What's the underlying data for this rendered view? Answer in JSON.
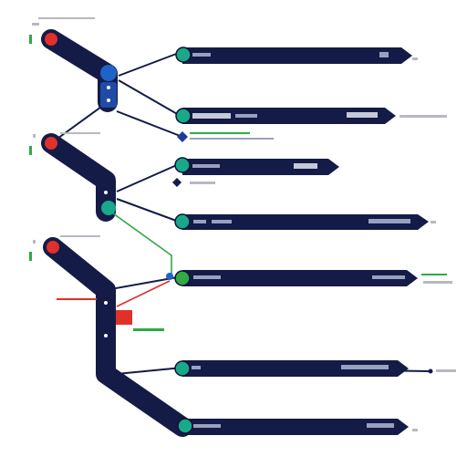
{
  "colors": {
    "navy": "#141b47",
    "navy_dark": "#0d1235",
    "teal": "#17a98a",
    "teal_light": "#2fc9a6",
    "red": "#e0302a",
    "green": "#2faa44",
    "blue": "#1f63c8",
    "gray": "#8a8a95",
    "page": "#ffffff"
  },
  "icons": [
    "node-teal",
    "node-red",
    "node-blue",
    "junction-diamond",
    "arrow-head"
  ],
  "branches": [
    {
      "label_short": "",
      "label_end": "",
      "arrow_tag": ""
    },
    {
      "label_short": "",
      "label_end": "",
      "arrow_tag": ""
    },
    {
      "label_short": "",
      "label_end": "",
      "arrow_tag": ""
    },
    {
      "label_short": "",
      "label_end": "",
      "arrow_tag": ""
    },
    {
      "label_short": "",
      "label_end": "",
      "arrow_tag": ""
    },
    {
      "label_short": "",
      "label_end": "",
      "arrow_tag": ""
    },
    {
      "label_short": "",
      "label_end": "",
      "arrow_tag": ""
    }
  ]
}
